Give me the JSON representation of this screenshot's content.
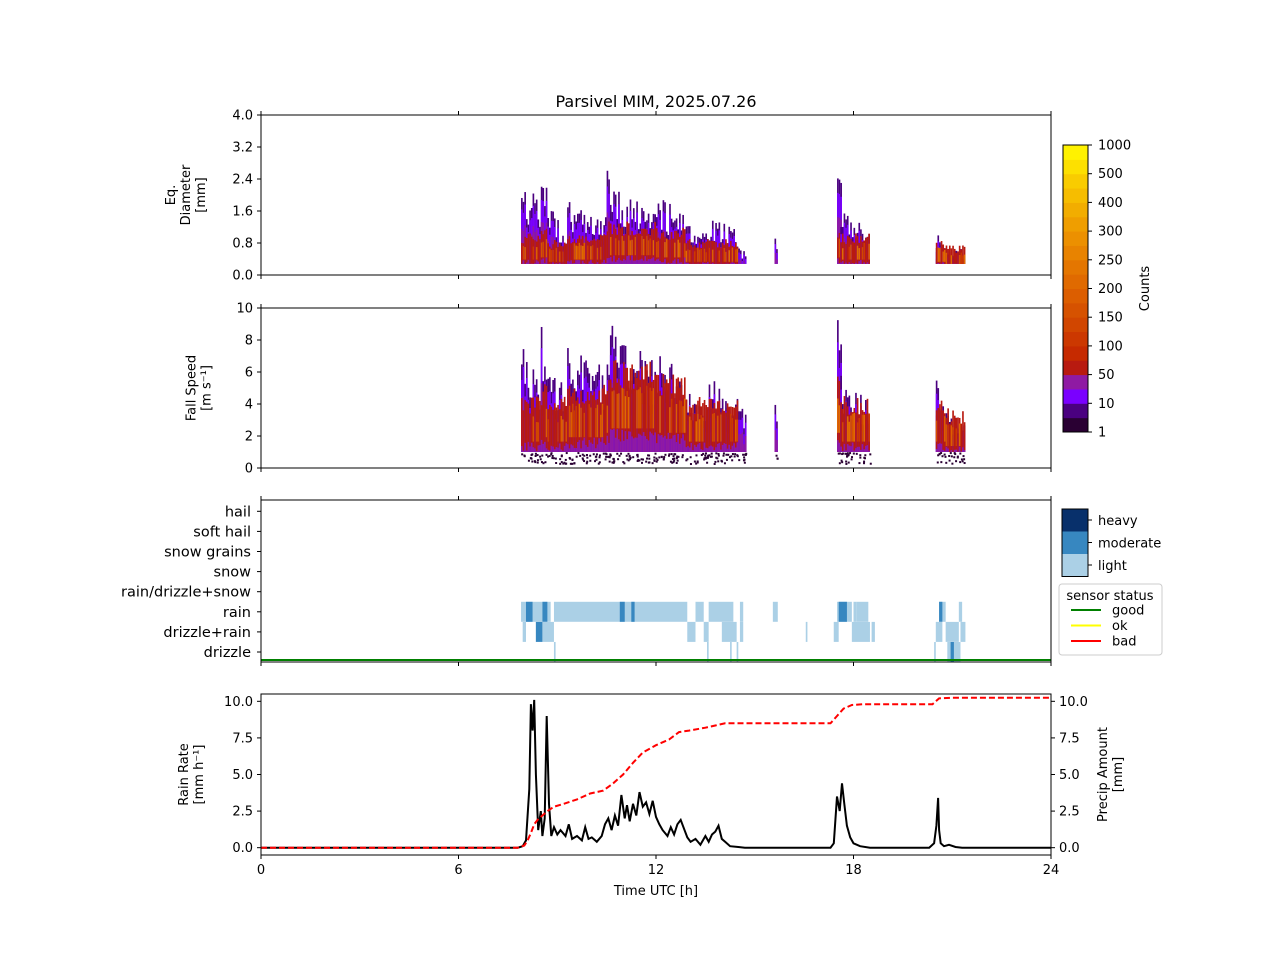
{
  "title": "Parsivel MIM, 2025.07.26",
  "chart_data": [
    {
      "type": "heatmap",
      "ylabel_lines": [
        "Eq.",
        "Diameter",
        "[mm]"
      ],
      "ylim": [
        0,
        4.0
      ],
      "yticks": [
        "0.0",
        "0.8",
        "1.6",
        "2.4",
        "3.2",
        "4.0"
      ],
      "xlim": [
        0,
        24
      ],
      "events": [
        {
          "t0": 7.9,
          "t1": 8.5,
          "top": 2.4,
          "core": 0.7
        },
        {
          "t0": 8.5,
          "t1": 8.7,
          "top": 3.0,
          "core": 0.8
        },
        {
          "t0": 8.7,
          "t1": 9.3,
          "top": 1.7,
          "core": 0.6
        },
        {
          "t0": 9.3,
          "t1": 10.6,
          "top": 1.9,
          "core": 0.7
        },
        {
          "t0": 10.5,
          "t1": 10.65,
          "top": 3.0,
          "core": 0.9
        },
        {
          "t0": 10.6,
          "t1": 12.0,
          "top": 2.2,
          "core": 0.9
        },
        {
          "t0": 12.0,
          "t1": 12.9,
          "top": 2.0,
          "core": 0.8
        },
        {
          "t0": 12.9,
          "t1": 13.6,
          "top": 1.4,
          "core": 0.6
        },
        {
          "t0": 13.6,
          "t1": 14.5,
          "top": 1.5,
          "core": 0.6
        },
        {
          "t0": 14.5,
          "t1": 14.75,
          "top": 0.75,
          "core": 0.0
        },
        {
          "t0": 15.6,
          "t1": 15.7,
          "top": 1.0,
          "core": 0.0
        },
        {
          "t0": 17.5,
          "t1": 17.65,
          "top": 3.0,
          "core": 0.8
        },
        {
          "t0": 17.6,
          "t1": 18.5,
          "top": 1.6,
          "core": 0.7
        },
        {
          "t0": 20.5,
          "t1": 20.8,
          "top": 1.2,
          "core": 0.6
        },
        {
          "t0": 20.8,
          "t1": 21.4,
          "top": 0.8,
          "core": 0.5
        }
      ]
    },
    {
      "type": "heatmap",
      "ylabel_lines": [
        "Fall Speed",
        "[m s⁻¹]"
      ],
      "ylim": [
        0,
        10
      ],
      "yticks": [
        "0",
        "2",
        "4",
        "6",
        "8",
        "10"
      ],
      "xlim": [
        0,
        24
      ],
      "events": [
        {
          "t0": 7.9,
          "t1": 8.5,
          "top": 8.0,
          "core": 3.0
        },
        {
          "t0": 8.5,
          "t1": 8.7,
          "top": 10.0,
          "core": 3.5
        },
        {
          "t0": 8.7,
          "t1": 9.3,
          "top": 7.0,
          "core": 3.0
        },
        {
          "t0": 9.3,
          "t1": 10.6,
          "top": 8.0,
          "core": 3.5
        },
        {
          "t0": 10.5,
          "t1": 10.65,
          "top": 10.0,
          "core": 4.0
        },
        {
          "t0": 10.6,
          "t1": 12.0,
          "top": 9.0,
          "core": 4.5
        },
        {
          "t0": 12.0,
          "t1": 12.9,
          "top": 7.5,
          "core": 4.0
        },
        {
          "t0": 12.9,
          "t1": 13.6,
          "top": 5.0,
          "core": 3.0
        },
        {
          "t0": 13.6,
          "t1": 14.5,
          "top": 6.0,
          "core": 3.0
        },
        {
          "t0": 14.5,
          "t1": 14.75,
          "top": 4.5,
          "core": 0.0
        },
        {
          "t0": 15.6,
          "t1": 15.7,
          "top": 4.5,
          "core": 0.0
        },
        {
          "t0": 17.5,
          "t1": 17.65,
          "top": 10.0,
          "core": 4.0
        },
        {
          "t0": 17.6,
          "t1": 18.5,
          "top": 6.0,
          "core": 3.0
        },
        {
          "t0": 20.5,
          "t1": 20.8,
          "top": 6.0,
          "core": 3.0
        },
        {
          "t0": 20.8,
          "t1": 21.4,
          "top": 4.0,
          "core": 2.5
        }
      ]
    },
    {
      "type": "heatmap",
      "categories": [
        "drizzle",
        "drizzle+rain",
        "rain",
        "rain/drizzle+snow",
        "snow",
        "snow grains",
        "soft hail",
        "hail"
      ],
      "xlim": [
        0,
        24
      ],
      "intensity_legend": {
        "items": [
          {
            "label": "heavy",
            "color": "#08306b"
          },
          {
            "label": "moderate",
            "color": "#3787c0"
          },
          {
            "label": "light",
            "color": "#abd0e6"
          }
        ]
      },
      "status_legend": {
        "title": "sensor status",
        "items": [
          {
            "label": "good",
            "color": "#008000"
          },
          {
            "label": "ok",
            "color": "#ffff00"
          },
          {
            "label": "bad",
            "color": "#ff0000"
          }
        ]
      },
      "sensor_status": "good",
      "segments": [
        {
          "cat": 2,
          "t0": 7.9,
          "t1": 8.8,
          "level": "light"
        },
        {
          "cat": 2,
          "t0": 8.05,
          "t1": 8.25,
          "level": "moderate"
        },
        {
          "cat": 2,
          "t0": 8.55,
          "t1": 8.7,
          "level": "moderate"
        },
        {
          "cat": 2,
          "t0": 8.9,
          "t1": 12.95,
          "level": "light"
        },
        {
          "cat": 2,
          "t0": 10.9,
          "t1": 11.05,
          "level": "moderate"
        },
        {
          "cat": 2,
          "t0": 11.25,
          "t1": 11.35,
          "level": "moderate"
        },
        {
          "cat": 2,
          "t0": 13.2,
          "t1": 13.45,
          "level": "light"
        },
        {
          "cat": 2,
          "t0": 13.6,
          "t1": 14.35,
          "level": "light"
        },
        {
          "cat": 2,
          "t0": 14.55,
          "t1": 14.65,
          "level": "light"
        },
        {
          "cat": 2,
          "t0": 15.55,
          "t1": 15.7,
          "level": "light"
        },
        {
          "cat": 2,
          "t0": 17.5,
          "t1": 17.95,
          "level": "light"
        },
        {
          "cat": 2,
          "t0": 17.55,
          "t1": 17.8,
          "level": "moderate"
        },
        {
          "cat": 2,
          "t0": 18.0,
          "t1": 18.1,
          "level": "light"
        },
        {
          "cat": 2,
          "t0": 18.1,
          "t1": 18.45,
          "level": "light"
        },
        {
          "cat": 2,
          "t0": 20.6,
          "t1": 20.8,
          "level": "light"
        },
        {
          "cat": 2,
          "t0": 20.6,
          "t1": 20.7,
          "level": "moderate"
        },
        {
          "cat": 2,
          "t0": 21.2,
          "t1": 21.3,
          "level": "light"
        },
        {
          "cat": 1,
          "t0": 7.95,
          "t1": 8.05,
          "level": "light"
        },
        {
          "cat": 1,
          "t0": 8.35,
          "t1": 8.55,
          "level": "moderate"
        },
        {
          "cat": 1,
          "t0": 8.55,
          "t1": 8.9,
          "level": "light"
        },
        {
          "cat": 1,
          "t0": 12.95,
          "t1": 13.2,
          "level": "light"
        },
        {
          "cat": 1,
          "t0": 13.45,
          "t1": 13.6,
          "level": "light"
        },
        {
          "cat": 1,
          "t0": 14.0,
          "t1": 14.45,
          "level": "light"
        },
        {
          "cat": 1,
          "t0": 14.55,
          "t1": 14.65,
          "level": "light"
        },
        {
          "cat": 1,
          "t0": 16.55,
          "t1": 16.6,
          "level": "light"
        },
        {
          "cat": 1,
          "t0": 17.4,
          "t1": 17.55,
          "level": "light"
        },
        {
          "cat": 1,
          "t0": 17.95,
          "t1": 18.0,
          "level": "light"
        },
        {
          "cat": 1,
          "t0": 18.0,
          "t1": 18.5,
          "level": "light"
        },
        {
          "cat": 1,
          "t0": 18.55,
          "t1": 18.65,
          "level": "light"
        },
        {
          "cat": 1,
          "t0": 20.5,
          "t1": 20.7,
          "level": "light"
        },
        {
          "cat": 1,
          "t0": 20.8,
          "t1": 21.2,
          "level": "light"
        },
        {
          "cat": 1,
          "t0": 21.25,
          "t1": 21.4,
          "level": "light"
        },
        {
          "cat": 0,
          "t0": 8.9,
          "t1": 8.95,
          "level": "light"
        },
        {
          "cat": 0,
          "t0": 13.55,
          "t1": 13.6,
          "level": "light"
        },
        {
          "cat": 0,
          "t0": 14.25,
          "t1": 14.3,
          "level": "light"
        },
        {
          "cat": 0,
          "t0": 14.45,
          "t1": 14.5,
          "level": "light"
        },
        {
          "cat": 0,
          "t0": 20.45,
          "t1": 20.5,
          "level": "light"
        },
        {
          "cat": 0,
          "t0": 20.85,
          "t1": 21.25,
          "level": "light"
        },
        {
          "cat": 0,
          "t0": 20.95,
          "t1": 21.05,
          "level": "moderate"
        }
      ]
    },
    {
      "type": "line",
      "xlabel": "Time UTC [h]",
      "xticks": [
        "0",
        "6",
        "12",
        "18",
        "24"
      ],
      "xlim": [
        0,
        24
      ],
      "ylabel_left_lines": [
        "Rain Rate",
        "[mm h⁻¹]"
      ],
      "ylabel_right_lines": [
        "Precip Amount",
        "[mm]"
      ],
      "ylim": [
        -0.5,
        10.5
      ],
      "yticks": [
        "0.0",
        "2.5",
        "5.0",
        "7.5",
        "10.0"
      ],
      "series": [
        {
          "axis": "left",
          "color": "#000000",
          "style": "solid",
          "points": [
            [
              0,
              0
            ],
            [
              7.8,
              0
            ],
            [
              7.95,
              0.1
            ],
            [
              8.05,
              0.5
            ],
            [
              8.15,
              4.0
            ],
            [
              8.2,
              9.8
            ],
            [
              8.25,
              8.0
            ],
            [
              8.3,
              10.1
            ],
            [
              8.35,
              5.0
            ],
            [
              8.42,
              1.2
            ],
            [
              8.5,
              2.5
            ],
            [
              8.55,
              0.8
            ],
            [
              8.62,
              2.0
            ],
            [
              8.68,
              9.0
            ],
            [
              8.75,
              3.0
            ],
            [
              8.82,
              0.8
            ],
            [
              8.9,
              1.4
            ],
            [
              9.0,
              0.9
            ],
            [
              9.1,
              1.2
            ],
            [
              9.25,
              0.8
            ],
            [
              9.35,
              1.6
            ],
            [
              9.45,
              0.6
            ],
            [
              9.6,
              0.8
            ],
            [
              9.75,
              0.5
            ],
            [
              9.85,
              1.4
            ],
            [
              9.95,
              0.6
            ],
            [
              10.05,
              0.7
            ],
            [
              10.2,
              0.4
            ],
            [
              10.35,
              0.8
            ],
            [
              10.45,
              1.6
            ],
            [
              10.55,
              2.0
            ],
            [
              10.65,
              1.2
            ],
            [
              10.75,
              2.2
            ],
            [
              10.85,
              1.5
            ],
            [
              10.95,
              3.6
            ],
            [
              11.05,
              2.0
            ],
            [
              11.12,
              2.9
            ],
            [
              11.2,
              1.8
            ],
            [
              11.3,
              3.0
            ],
            [
              11.4,
              2.2
            ],
            [
              11.5,
              3.8
            ],
            [
              11.6,
              2.8
            ],
            [
              11.7,
              3.1
            ],
            [
              11.8,
              2.3
            ],
            [
              11.9,
              3.2
            ],
            [
              12.0,
              2.1
            ],
            [
              12.1,
              1.6
            ],
            [
              12.2,
              1.2
            ],
            [
              12.35,
              0.8
            ],
            [
              12.45,
              1.4
            ],
            [
              12.55,
              0.9
            ],
            [
              12.65,
              1.6
            ],
            [
              12.75,
              1.9
            ],
            [
              12.85,
              1.3
            ],
            [
              12.95,
              0.7
            ],
            [
              13.05,
              0.4
            ],
            [
              13.2,
              0.6
            ],
            [
              13.35,
              0.2
            ],
            [
              13.5,
              0.8
            ],
            [
              13.6,
              0.4
            ],
            [
              13.7,
              0.9
            ],
            [
              13.8,
              1.1
            ],
            [
              13.9,
              1.5
            ],
            [
              14.0,
              0.6
            ],
            [
              14.1,
              0.4
            ],
            [
              14.25,
              0.1
            ],
            [
              14.5,
              0.05
            ],
            [
              14.7,
              0
            ],
            [
              17.3,
              0
            ],
            [
              17.4,
              0.3
            ],
            [
              17.5,
              3.5
            ],
            [
              17.58,
              2.5
            ],
            [
              17.65,
              4.4
            ],
            [
              17.72,
              3.0
            ],
            [
              17.8,
              1.5
            ],
            [
              17.9,
              0.7
            ],
            [
              18.0,
              0.3
            ],
            [
              18.2,
              0.1
            ],
            [
              18.5,
              0
            ],
            [
              20.3,
              0
            ],
            [
              20.45,
              0.3
            ],
            [
              20.52,
              1.5
            ],
            [
              20.57,
              3.4
            ],
            [
              20.6,
              1.2
            ],
            [
              20.65,
              0.3
            ],
            [
              20.75,
              0.1
            ],
            [
              20.9,
              0.2
            ],
            [
              21.1,
              0.05
            ],
            [
              21.3,
              0
            ],
            [
              24,
              0
            ]
          ]
        },
        {
          "axis": "right",
          "color": "#ff0000",
          "style": "dashed",
          "points": [
            [
              0,
              0
            ],
            [
              7.8,
              0
            ],
            [
              8.0,
              0.15
            ],
            [
              8.1,
              0.5
            ],
            [
              8.2,
              1.0
            ],
            [
              8.3,
              1.6
            ],
            [
              8.4,
              1.9
            ],
            [
              8.55,
              2.2
            ],
            [
              8.7,
              2.5
            ],
            [
              8.9,
              2.8
            ],
            [
              9.2,
              3.0
            ],
            [
              9.6,
              3.3
            ],
            [
              10.0,
              3.7
            ],
            [
              10.4,
              3.9
            ],
            [
              10.7,
              4.4
            ],
            [
              11.0,
              5.0
            ],
            [
              11.3,
              5.8
            ],
            [
              11.6,
              6.5
            ],
            [
              12.0,
              7.0
            ],
            [
              12.4,
              7.4
            ],
            [
              12.7,
              7.9
            ],
            [
              13.0,
              8.0
            ],
            [
              13.5,
              8.2
            ],
            [
              13.8,
              8.35
            ],
            [
              14.1,
              8.5
            ],
            [
              14.5,
              8.5
            ],
            [
              17.3,
              8.5
            ],
            [
              17.5,
              9.0
            ],
            [
              17.7,
              9.5
            ],
            [
              17.95,
              9.75
            ],
            [
              18.3,
              9.8
            ],
            [
              20.4,
              9.8
            ],
            [
              20.6,
              10.2
            ],
            [
              21.0,
              10.25
            ],
            [
              24,
              10.25
            ]
          ]
        }
      ]
    }
  ],
  "colorbar": {
    "label": "Counts",
    "tick_labels": [
      "1",
      "10",
      "50",
      "100",
      "150",
      "200",
      "250",
      "300",
      "400",
      "500",
      "1000"
    ],
    "colors": [
      "#2a0033",
      "#4a0080",
      "#7a00ff",
      "#8f1aa3",
      "#b81a10",
      "#c62a00",
      "#cc3800",
      "#d14600",
      "#d65200",
      "#dc5e00",
      "#e06a00",
      "#e47600",
      "#e88300",
      "#ec9000",
      "#ef9e00",
      "#f2ad00",
      "#f6bd00",
      "#f9cc00",
      "#fde000",
      "#fff200"
    ]
  }
}
